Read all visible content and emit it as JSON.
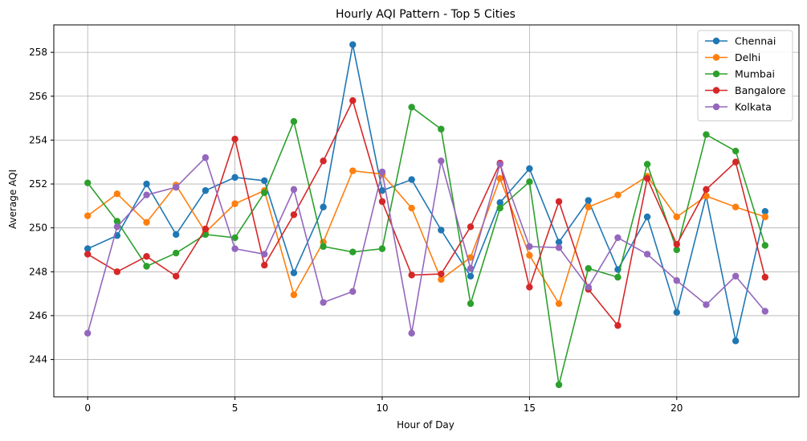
{
  "chart_data": {
    "type": "line",
    "title": "Hourly AQI Pattern - Top 5 Cities",
    "xlabel": "Hour of Day",
    "ylabel": "Average AQI",
    "xlim": [
      -1.15,
      24.15
    ],
    "ylim": [
      242.3,
      259.25
    ],
    "xticks": [
      0,
      5,
      10,
      15,
      20
    ],
    "yticks": [
      244,
      246,
      248,
      250,
      252,
      254,
      256,
      258
    ],
    "grid": true,
    "legend_position": "top-right",
    "x": [
      0,
      1,
      2,
      3,
      4,
      5,
      6,
      7,
      8,
      9,
      10,
      11,
      12,
      13,
      14,
      15,
      16,
      17,
      18,
      19,
      20,
      21,
      22,
      23
    ],
    "series": [
      {
        "name": "Chennai",
        "color": "#1f77b4",
        "values": [
          249.05,
          249.65,
          252.0,
          249.7,
          251.7,
          252.3,
          252.15,
          247.95,
          250.95,
          258.35,
          251.7,
          252.2,
          249.9,
          247.8,
          251.15,
          252.7,
          249.35,
          251.25,
          248.1,
          250.5,
          246.15,
          251.45,
          244.85,
          250.75
        ]
      },
      {
        "name": "Delhi",
        "color": "#ff7f0e",
        "values": [
          250.55,
          251.55,
          250.25,
          251.95,
          249.8,
          251.1,
          251.7,
          246.95,
          249.35,
          252.6,
          252.45,
          250.9,
          247.65,
          248.65,
          252.25,
          248.75,
          246.55,
          250.95,
          251.5,
          252.35,
          250.5,
          251.45,
          250.95,
          250.5
        ]
      },
      {
        "name": "Mumbai",
        "color": "#2ca02c",
        "values": [
          252.05,
          250.3,
          248.25,
          248.85,
          249.7,
          249.55,
          251.6,
          254.85,
          249.15,
          248.9,
          249.05,
          255.5,
          254.5,
          246.55,
          250.9,
          252.1,
          242.85,
          248.15,
          247.75,
          252.9,
          249.0,
          254.25,
          253.5,
          249.2
        ]
      },
      {
        "name": "Bangalore",
        "color": "#d62728",
        "values": [
          248.8,
          248.0,
          248.7,
          247.8,
          249.95,
          254.05,
          248.3,
          250.6,
          253.05,
          255.8,
          251.2,
          247.85,
          247.9,
          250.05,
          252.95,
          247.3,
          251.2,
          247.2,
          245.55,
          252.25,
          249.25,
          251.75,
          253.0,
          247.75
        ]
      },
      {
        "name": "Kolkata",
        "color": "#9467bd",
        "values": [
          245.2,
          250.05,
          251.5,
          251.85,
          253.2,
          249.05,
          248.8,
          251.75,
          246.6,
          247.1,
          252.55,
          245.2,
          253.05,
          248.15,
          252.9,
          249.15,
          249.1,
          247.3,
          249.55,
          248.8,
          247.6,
          246.5,
          247.8,
          246.2
        ]
      }
    ]
  }
}
